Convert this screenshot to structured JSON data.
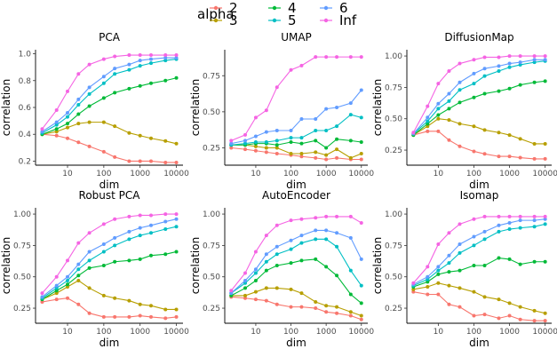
{
  "legend": {
    "title": "alpha",
    "entries": [
      {
        "label": "2",
        "color": "#F8766D"
      },
      {
        "label": "3",
        "color": "#B79F00"
      },
      {
        "label": "4",
        "color": "#00BA38"
      },
      {
        "label": "5",
        "color": "#00BFC4"
      },
      {
        "label": "6",
        "color": "#619CFF"
      },
      {
        "label": "Inf",
        "color": "#F564E3"
      }
    ]
  },
  "chart_data": [
    {
      "type": "line",
      "title": "PCA",
      "xlabel": "dim",
      "ylabel": "correlation",
      "x_scale": "log",
      "xlim": [
        2,
        10000
      ],
      "x_ticks": [
        10,
        100,
        1000,
        10000
      ],
      "x_tick_labels": [
        "10",
        "100",
        "1000",
        "10000"
      ],
      "ylim": [
        0.17,
        1.03
      ],
      "y_ticks": [
        0.2,
        0.4,
        0.6,
        0.8,
        1.0
      ],
      "y_tick_labels": [
        "0.2",
        "0.4",
        "0.6",
        "0.8",
        "1.0"
      ],
      "x": [
        2,
        5,
        10,
        20,
        40,
        100,
        200,
        500,
        1000,
        2000,
        5000,
        10000
      ],
      "series": [
        {
          "name": "2",
          "values": [
            0.4,
            0.39,
            0.37,
            0.34,
            0.31,
            0.27,
            0.23,
            0.2,
            0.2,
            0.2,
            0.19,
            0.19
          ]
        },
        {
          "name": "3",
          "values": [
            0.4,
            0.42,
            0.45,
            0.48,
            0.49,
            0.49,
            0.46,
            0.41,
            0.39,
            0.37,
            0.35,
            0.33
          ]
        },
        {
          "name": "4",
          "values": [
            0.4,
            0.44,
            0.48,
            0.55,
            0.61,
            0.67,
            0.71,
            0.74,
            0.76,
            0.78,
            0.8,
            0.82
          ]
        },
        {
          "name": "5",
          "values": [
            0.41,
            0.47,
            0.53,
            0.62,
            0.7,
            0.78,
            0.85,
            0.88,
            0.91,
            0.93,
            0.95,
            0.96
          ]
        },
        {
          "name": "6",
          "values": [
            0.42,
            0.49,
            0.56,
            0.66,
            0.75,
            0.83,
            0.89,
            0.92,
            0.95,
            0.96,
            0.97,
            0.97
          ]
        },
        {
          "name": "Inf",
          "values": [
            0.44,
            0.58,
            0.72,
            0.85,
            0.92,
            0.96,
            0.98,
            0.99,
            0.99,
            0.99,
            0.99,
            0.99
          ]
        }
      ]
    },
    {
      "type": "line",
      "title": "UMAP",
      "xlabel": "dim",
      "ylabel": "correlation",
      "x_scale": "log",
      "xlim": [
        2,
        10000
      ],
      "x_ticks": [
        10,
        100,
        1000,
        10000
      ],
      "x_tick_labels": [
        "10",
        "100",
        "1000",
        "10000"
      ],
      "ylim": [
        0.13,
        0.93
      ],
      "y_ticks": [
        0.25,
        0.5,
        0.75
      ],
      "y_tick_labels": [
        "0.25",
        "0.50",
        "0.75"
      ],
      "x": [
        2,
        5,
        10,
        20,
        40,
        100,
        200,
        500,
        1000,
        2000,
        5000,
        10000
      ],
      "series": [
        {
          "name": "2",
          "values": [
            0.25,
            0.24,
            0.23,
            0.22,
            0.21,
            0.2,
            0.19,
            0.18,
            0.17,
            0.18,
            0.17,
            0.17
          ]
        },
        {
          "name": "3",
          "values": [
            0.27,
            0.27,
            0.26,
            0.25,
            0.25,
            0.21,
            0.21,
            0.22,
            0.2,
            0.24,
            0.18,
            0.21
          ]
        },
        {
          "name": "4",
          "values": [
            0.27,
            0.27,
            0.28,
            0.28,
            0.27,
            0.29,
            0.28,
            0.3,
            0.25,
            0.31,
            0.3,
            0.29
          ]
        },
        {
          "name": "5",
          "values": [
            0.27,
            0.28,
            0.29,
            0.29,
            0.3,
            0.32,
            0.32,
            0.37,
            0.37,
            0.4,
            0.48,
            0.46
          ]
        },
        {
          "name": "6",
          "values": [
            0.28,
            0.3,
            0.33,
            0.36,
            0.37,
            0.37,
            0.45,
            0.45,
            0.52,
            0.53,
            0.56,
            0.65
          ]
        },
        {
          "name": "Inf",
          "values": [
            0.3,
            0.34,
            0.46,
            0.51,
            0.67,
            0.79,
            0.82,
            0.88,
            0.88,
            0.88,
            0.88,
            0.88
          ]
        }
      ]
    },
    {
      "type": "line",
      "title": "DiffusionMap",
      "xlabel": "dim",
      "ylabel": "correlation",
      "x_scale": "log",
      "xlim": [
        2,
        10000
      ],
      "x_ticks": [
        10,
        100,
        1000,
        10000
      ],
      "x_tick_labels": [
        "10",
        "100",
        "1000",
        "10000"
      ],
      "ylim": [
        0.13,
        1.05
      ],
      "y_ticks": [
        0.25,
        0.5,
        0.75,
        1.0
      ],
      "y_tick_labels": [
        "0.25",
        "0.50",
        "0.75",
        "1.00"
      ],
      "x": [
        2,
        5,
        10,
        20,
        40,
        100,
        200,
        500,
        1000,
        2000,
        5000,
        10000
      ],
      "series": [
        {
          "name": "2",
          "values": [
            0.37,
            0.4,
            0.4,
            0.33,
            0.28,
            0.24,
            0.22,
            0.2,
            0.2,
            0.19,
            0.18,
            0.18
          ]
        },
        {
          "name": "3",
          "values": [
            0.37,
            0.44,
            0.5,
            0.49,
            0.46,
            0.44,
            0.41,
            0.39,
            0.37,
            0.34,
            0.3,
            0.3
          ]
        },
        {
          "name": "4",
          "values": [
            0.37,
            0.46,
            0.53,
            0.58,
            0.63,
            0.67,
            0.7,
            0.72,
            0.74,
            0.77,
            0.79,
            0.8
          ]
        },
        {
          "name": "5",
          "values": [
            0.38,
            0.48,
            0.58,
            0.64,
            0.73,
            0.78,
            0.84,
            0.88,
            0.91,
            0.93,
            0.95,
            0.96
          ]
        },
        {
          "name": "6",
          "values": [
            0.38,
            0.51,
            0.62,
            0.7,
            0.79,
            0.86,
            0.9,
            0.92,
            0.94,
            0.95,
            0.97,
            0.97
          ]
        },
        {
          "name": "Inf",
          "values": [
            0.39,
            0.6,
            0.78,
            0.88,
            0.94,
            0.97,
            0.99,
            0.99,
            1.0,
            1.0,
            1.0,
            1.0
          ]
        }
      ]
    },
    {
      "type": "line",
      "title": "Robust PCA",
      "xlabel": "dim",
      "ylabel": "correlation",
      "x_scale": "log",
      "xlim": [
        2,
        10000
      ],
      "x_ticks": [
        10,
        100,
        1000,
        10000
      ],
      "x_tick_labels": [
        "10",
        "100",
        "1000",
        "10000"
      ],
      "ylim": [
        0.13,
        1.05
      ],
      "y_ticks": [
        0.25,
        0.5,
        0.75,
        1.0
      ],
      "y_tick_labels": [
        "0.25",
        "0.50",
        "0.75",
        "1.00"
      ],
      "x": [
        2,
        5,
        10,
        20,
        40,
        100,
        200,
        500,
        1000,
        2000,
        5000,
        10000
      ],
      "series": [
        {
          "name": "2",
          "values": [
            0.3,
            0.32,
            0.33,
            0.28,
            0.21,
            0.18,
            0.18,
            0.18,
            0.19,
            0.18,
            0.17,
            0.18
          ]
        },
        {
          "name": "3",
          "values": [
            0.32,
            0.37,
            0.42,
            0.47,
            0.41,
            0.35,
            0.33,
            0.31,
            0.28,
            0.27,
            0.24,
            0.24
          ]
        },
        {
          "name": "4",
          "values": [
            0.32,
            0.39,
            0.44,
            0.51,
            0.57,
            0.59,
            0.62,
            0.63,
            0.64,
            0.67,
            0.68,
            0.7
          ]
        },
        {
          "name": "5",
          "values": [
            0.33,
            0.41,
            0.47,
            0.56,
            0.63,
            0.7,
            0.75,
            0.8,
            0.83,
            0.85,
            0.88,
            0.9
          ]
        },
        {
          "name": "6",
          "values": [
            0.34,
            0.43,
            0.5,
            0.6,
            0.7,
            0.76,
            0.81,
            0.86,
            0.89,
            0.91,
            0.94,
            0.96
          ]
        },
        {
          "name": "Inf",
          "values": [
            0.37,
            0.5,
            0.63,
            0.77,
            0.85,
            0.92,
            0.96,
            0.98,
            0.99,
            0.99,
            1.0,
            1.0
          ]
        }
      ]
    },
    {
      "type": "line",
      "title": "AutoEncoder",
      "xlabel": "dim",
      "ylabel": "correlation",
      "x_scale": "log",
      "xlim": [
        2,
        10000
      ],
      "x_ticks": [
        10,
        100,
        1000,
        10000
      ],
      "x_tick_labels": [
        "10",
        "100",
        "1000",
        "10000"
      ],
      "ylim": [
        0.13,
        1.05
      ],
      "y_ticks": [
        0.25,
        0.5,
        0.75,
        1.0
      ],
      "y_tick_labels": [
        "0.25",
        "0.50",
        "0.75",
        "1.00"
      ],
      "x": [
        2,
        5,
        10,
        20,
        40,
        100,
        200,
        500,
        1000,
        2000,
        5000,
        10000
      ],
      "series": [
        {
          "name": "2",
          "values": [
            0.34,
            0.33,
            0.32,
            0.31,
            0.28,
            0.26,
            0.26,
            0.25,
            0.22,
            0.21,
            0.19,
            0.16
          ]
        },
        {
          "name": "3",
          "values": [
            0.35,
            0.35,
            0.38,
            0.41,
            0.41,
            0.4,
            0.37,
            0.3,
            0.27,
            0.26,
            0.22,
            0.19
          ]
        },
        {
          "name": "4",
          "values": [
            0.35,
            0.41,
            0.47,
            0.55,
            0.59,
            0.61,
            0.63,
            0.64,
            0.58,
            0.51,
            0.36,
            0.29
          ]
        },
        {
          "name": "5",
          "values": [
            0.37,
            0.45,
            0.53,
            0.62,
            0.68,
            0.72,
            0.77,
            0.8,
            0.8,
            0.74,
            0.55,
            0.43
          ]
        },
        {
          "name": "6",
          "values": [
            0.37,
            0.47,
            0.56,
            0.68,
            0.74,
            0.79,
            0.83,
            0.87,
            0.87,
            0.85,
            0.81,
            0.64
          ]
        },
        {
          "name": "Inf",
          "values": [
            0.39,
            0.53,
            0.7,
            0.83,
            0.91,
            0.95,
            0.96,
            0.97,
            0.98,
            0.98,
            0.98,
            0.93
          ]
        }
      ]
    },
    {
      "type": "line",
      "title": "Isomap",
      "xlabel": "dim",
      "ylabel": "correlation",
      "x_scale": "log",
      "xlim": [
        2,
        10000
      ],
      "x_ticks": [
        10,
        100,
        1000,
        10000
      ],
      "x_tick_labels": [
        "10",
        "100",
        "1000",
        "10000"
      ],
      "ylim": [
        0.13,
        1.05
      ],
      "y_ticks": [
        0.25,
        0.5,
        0.75,
        1.0
      ],
      "y_tick_labels": [
        "0.25",
        "0.50",
        "0.75",
        "1.00"
      ],
      "x": [
        2,
        5,
        10,
        20,
        40,
        100,
        200,
        500,
        1000,
        2000,
        5000,
        10000
      ],
      "series": [
        {
          "name": "2",
          "values": [
            0.38,
            0.36,
            0.36,
            0.28,
            0.26,
            0.19,
            0.2,
            0.17,
            0.19,
            0.16,
            0.15,
            0.15
          ]
        },
        {
          "name": "3",
          "values": [
            0.4,
            0.42,
            0.45,
            0.43,
            0.41,
            0.38,
            0.34,
            0.32,
            0.29,
            0.26,
            0.23,
            0.21
          ]
        },
        {
          "name": "4",
          "values": [
            0.42,
            0.46,
            0.52,
            0.54,
            0.55,
            0.59,
            0.59,
            0.65,
            0.64,
            0.6,
            0.62,
            0.62
          ]
        },
        {
          "name": "5",
          "values": [
            0.43,
            0.48,
            0.55,
            0.61,
            0.69,
            0.75,
            0.8,
            0.86,
            0.88,
            0.89,
            0.9,
            0.92
          ]
        },
        {
          "name": "6",
          "values": [
            0.44,
            0.5,
            0.58,
            0.67,
            0.76,
            0.82,
            0.86,
            0.91,
            0.93,
            0.95,
            0.95,
            0.96
          ]
        },
        {
          "name": "Inf",
          "values": [
            0.45,
            0.58,
            0.76,
            0.85,
            0.92,
            0.96,
            0.98,
            0.98,
            0.98,
            0.98,
            0.98,
            0.98
          ]
        }
      ]
    }
  ]
}
